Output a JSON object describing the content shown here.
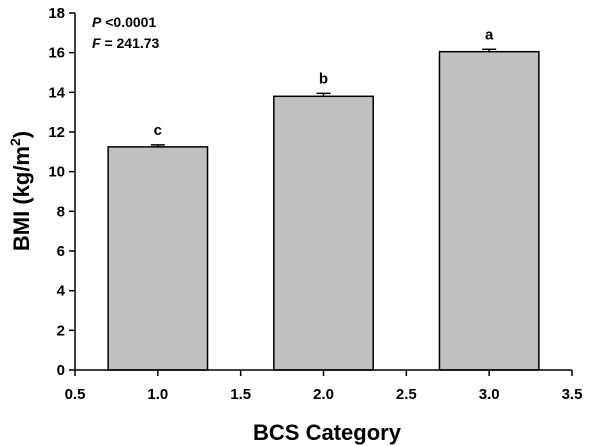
{
  "chart_data": {
    "type": "bar",
    "x": [
      1.0,
      2.0,
      3.0
    ],
    "values": [
      11.25,
      13.8,
      16.05
    ],
    "errors": [
      0.1,
      0.15,
      0.12
    ],
    "significance_letters": [
      "c",
      "b",
      "a"
    ],
    "xlabel": "BCS Category",
    "ylabel": "BMI (kg/m",
    "ylabel_sup": "2",
    "ylabel_close": ")",
    "xlim": [
      0.5,
      3.5
    ],
    "ylim": [
      0,
      18
    ],
    "xticks": [
      "0.5",
      "1.0",
      "1.5",
      "2.0",
      "2.5",
      "3.0",
      "3.5"
    ],
    "yticks": [
      "0",
      "2",
      "4",
      "6",
      "8",
      "10",
      "12",
      "14",
      "16",
      "18"
    ],
    "bar_width": 0.6,
    "grid": false,
    "annotations": {
      "p_label": "P",
      "p_value": " <0.0001",
      "f_label": "F",
      "f_value": " = 241.73"
    }
  },
  "colors": {
    "bar_fill": "#c0c0c0",
    "bar_stroke": "#000000",
    "axis": "#000000"
  }
}
